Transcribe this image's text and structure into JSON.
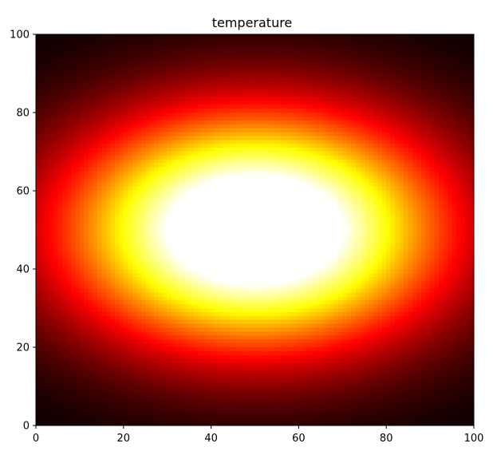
{
  "chart_data": {
    "type": "heatmap",
    "title": "temperature",
    "xlabel": "",
    "ylabel": "",
    "xlim": [
      0,
      100
    ],
    "ylim": [
      0,
      100
    ],
    "x_ticks": [
      0,
      20,
      40,
      60,
      80,
      100
    ],
    "y_ticks": [
      0,
      20,
      40,
      60,
      80,
      100
    ],
    "grid": false,
    "colormap": "hot",
    "grid_resolution": 100,
    "field": {
      "shape": "elliptical-gaussian",
      "center": [
        50,
        50
      ],
      "x_scale": 60,
      "y_scale": 42,
      "peak": 1.25
    },
    "colors": {
      "cold": "#000000",
      "mid": "#ff0000",
      "warm": "#ffff00",
      "hot": "#ffffff"
    }
  }
}
